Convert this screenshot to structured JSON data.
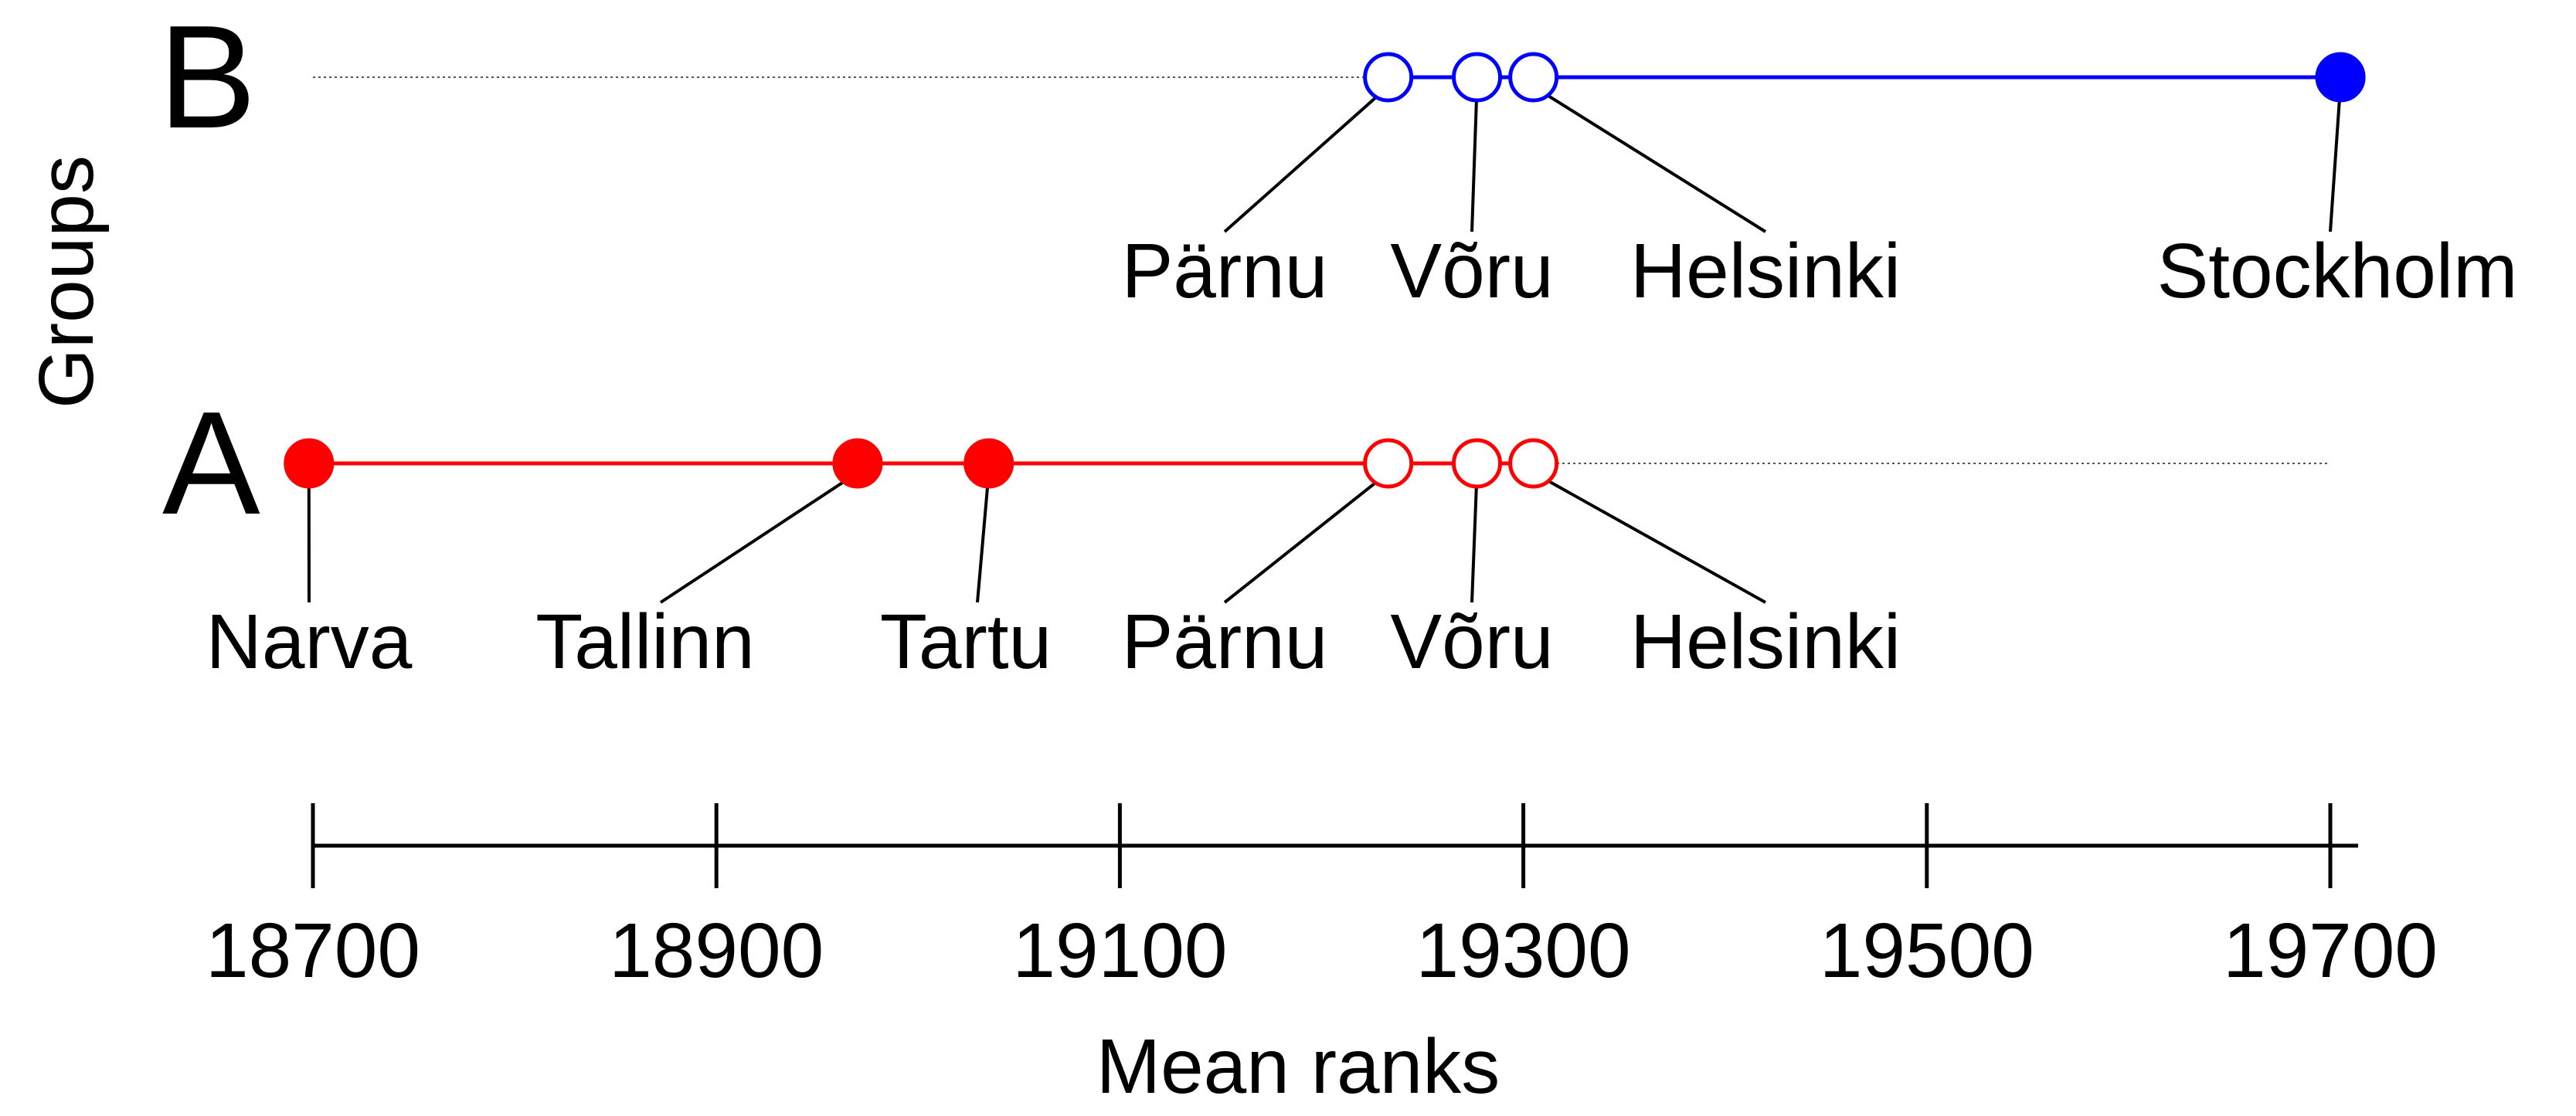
{
  "chart_data": {
    "type": "scatter",
    "title": "",
    "xlabel": "Mean ranks",
    "ylabel": "Groups",
    "xlim": [
      18700,
      19700
    ],
    "xticks": [
      18700,
      18900,
      19100,
      19300,
      19500,
      19700
    ],
    "tick_labels": [
      "18700",
      "18900",
      "19100",
      "19300",
      "19500",
      "19700"
    ],
    "grid": false,
    "groups": [
      {
        "name": "B",
        "color": "#0000ff",
        "points": [
          {
            "label": "Pärnu",
            "x": 19233,
            "filled": false
          },
          {
            "label": "Võru",
            "x": 19277,
            "filled": false
          },
          {
            "label": "Helsinki",
            "x": 19305,
            "filled": false
          },
          {
            "label": "Stockholm",
            "x": 19705,
            "filled": true
          }
        ]
      },
      {
        "name": "A",
        "color": "#ff0000",
        "points": [
          {
            "label": "Narva",
            "x": 18698,
            "filled": true
          },
          {
            "label": "Tallinn",
            "x": 18970,
            "filled": true
          },
          {
            "label": "Tartu",
            "x": 19035,
            "filled": true
          },
          {
            "label": "Pärnu",
            "x": 19233,
            "filled": false
          },
          {
            "label": "Võru",
            "x": 19277,
            "filled": false
          },
          {
            "label": "Helsinki",
            "x": 19305,
            "filled": false
          }
        ]
      }
    ]
  }
}
